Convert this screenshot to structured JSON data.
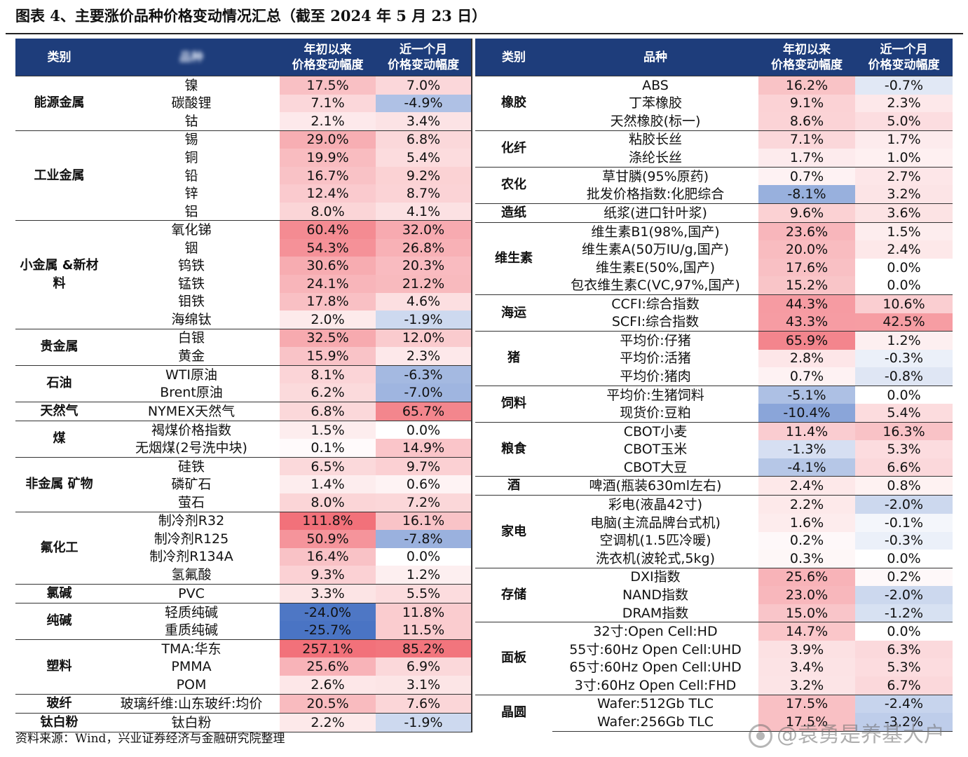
{
  "title": "图表 4、主要涨价品种价格变动情况汇总（截至 2024 年 5 月 23 日）",
  "source": "资料来源：Wind，兴业证券经济与金融研究院整理",
  "watermark": "@袁勇是养基大户",
  "headers": {
    "category": "类别",
    "variety": "品种",
    "ytd_line1": "年初以来",
    "ytd_line2": "价格变动幅度",
    "month_line1": "近一个月",
    "month_line2": "价格变动幅度"
  },
  "colors": {
    "header_bg": "#1e3d7b",
    "positive": "#f0616b",
    "negative": "#4a74c4"
  },
  "left_groups": [
    {
      "category": "能源金属",
      "rows": [
        {
          "name": "镍",
          "ytd": "17.5%",
          "month": "7.0%"
        },
        {
          "name": "碳酸锂",
          "ytd": "7.1%",
          "month": "-4.9%"
        },
        {
          "name": "钴",
          "ytd": "2.1%",
          "month": "3.4%"
        }
      ]
    },
    {
      "category": "工业金属",
      "rows": [
        {
          "name": "锡",
          "ytd": "29.0%",
          "month": "6.8%"
        },
        {
          "name": "铜",
          "ytd": "19.9%",
          "month": "5.4%"
        },
        {
          "name": "铅",
          "ytd": "16.7%",
          "month": "9.2%"
        },
        {
          "name": "锌",
          "ytd": "12.4%",
          "month": "8.7%"
        },
        {
          "name": "铝",
          "ytd": "8.0%",
          "month": "4.1%"
        }
      ]
    },
    {
      "category": "小金属 &新材料",
      "rows": [
        {
          "name": "氧化锑",
          "ytd": "60.4%",
          "month": "32.0%"
        },
        {
          "name": "铟",
          "ytd": "54.3%",
          "month": "26.8%"
        },
        {
          "name": "钨铁",
          "ytd": "30.6%",
          "month": "20.3%"
        },
        {
          "name": "锰铁",
          "ytd": "24.1%",
          "month": "21.2%"
        },
        {
          "name": "钼铁",
          "ytd": "17.8%",
          "month": "4.6%"
        },
        {
          "name": "海绵钛",
          "ytd": "2.0%",
          "month": "-1.9%"
        }
      ]
    },
    {
      "category": "贵金属",
      "rows": [
        {
          "name": "白银",
          "ytd": "32.5%",
          "month": "12.0%"
        },
        {
          "name": "黄金",
          "ytd": "15.9%",
          "month": "2.3%"
        }
      ]
    },
    {
      "category": "石油",
      "rows": [
        {
          "name": "WTI原油",
          "ytd": "8.1%",
          "month": "-6.3%"
        },
        {
          "name": "Brent原油",
          "ytd": "6.2%",
          "month": "-7.0%"
        }
      ]
    },
    {
      "category": "天然气",
      "rows": [
        {
          "name": "NYMEX天然气",
          "ytd": "6.8%",
          "month": "65.7%"
        }
      ]
    },
    {
      "category": "煤",
      "rows": [
        {
          "name": "褐煤价格指数",
          "ytd": "1.5%",
          "month": "0.0%"
        },
        {
          "name": "无烟煤(2号洗中块)",
          "ytd": "0.1%",
          "month": "14.9%"
        }
      ]
    },
    {
      "category": "非金属 矿物",
      "rows": [
        {
          "name": "硅铁",
          "ytd": "6.5%",
          "month": "9.7%"
        },
        {
          "name": "磷矿石",
          "ytd": "1.4%",
          "month": "0.6%"
        },
        {
          "name": "萤石",
          "ytd": "8.0%",
          "month": "7.2%"
        }
      ]
    },
    {
      "category": "氟化工",
      "rows": [
        {
          "name": "制冷剂R32",
          "ytd": "111.8%",
          "month": "16.1%"
        },
        {
          "name": "制冷剂R125",
          "ytd": "50.9%",
          "month": "-7.8%"
        },
        {
          "name": "制冷剂R134A",
          "ytd": "16.4%",
          "month": "0.0%"
        },
        {
          "name": "氢氟酸",
          "ytd": "9.3%",
          "month": "1.2%"
        }
      ]
    },
    {
      "category": "氯碱",
      "rows": [
        {
          "name": "PVC",
          "ytd": "3.3%",
          "month": "5.5%"
        }
      ]
    },
    {
      "category": "纯碱",
      "rows": [
        {
          "name": "轻质纯碱",
          "ytd": "-24.0%",
          "month": "11.8%"
        },
        {
          "name": "重质纯碱",
          "ytd": "-25.7%",
          "month": "11.5%"
        }
      ]
    },
    {
      "category": "塑料",
      "rows": [
        {
          "name": "TMA:华东",
          "ytd": "257.1%",
          "month": "85.2%"
        },
        {
          "name": "PMMA",
          "ytd": "25.6%",
          "month": "6.9%"
        },
        {
          "name": "POM",
          "ytd": "2.6%",
          "month": "3.1%"
        }
      ]
    },
    {
      "category": "玻纤",
      "rows": [
        {
          "name": "玻璃纤维:山东玻纤:均价",
          "ytd": "20.5%",
          "month": "7.6%"
        }
      ]
    },
    {
      "category": "钛白粉",
      "rows": [
        {
          "name": "钛白粉",
          "ytd": "2.2%",
          "month": "-1.9%"
        }
      ]
    }
  ],
  "right_groups": [
    {
      "category": "橡胶",
      "rows": [
        {
          "name": "ABS",
          "ytd": "16.2%",
          "month": "-0.7%"
        },
        {
          "name": "丁苯橡胶",
          "ytd": "9.1%",
          "month": "2.3%"
        },
        {
          "name": "天然橡胶(标一)",
          "ytd": "8.6%",
          "month": "5.0%"
        }
      ]
    },
    {
      "category": "化纤",
      "rows": [
        {
          "name": "粘胶长丝",
          "ytd": "7.1%",
          "month": "1.7%"
        },
        {
          "name": "涤纶长丝",
          "ytd": "1.7%",
          "month": "1.0%"
        }
      ]
    },
    {
      "category": "农化",
      "rows": [
        {
          "name": "草甘膦(95%原药)",
          "ytd": "0.7%",
          "month": "2.7%"
        },
        {
          "name": "批发价格指数:化肥综合",
          "ytd": "-8.1%",
          "month": "3.2%"
        }
      ]
    },
    {
      "category": "造纸",
      "rows": [
        {
          "name": "纸浆(进口针叶浆)",
          "ytd": "9.6%",
          "month": "3.6%"
        }
      ]
    },
    {
      "category": "维生素",
      "rows": [
        {
          "name": "维生素B1(98%,国产)",
          "ytd": "23.6%",
          "month": "1.5%"
        },
        {
          "name": "维生素A(50万IU/g,国产)",
          "ytd": "20.0%",
          "month": "2.4%"
        },
        {
          "name": "维生素E(50%,国产)",
          "ytd": "17.6%",
          "month": "0.0%"
        },
        {
          "name": "包衣维生素C(VC,97%,国产)",
          "ytd": "15.2%",
          "month": "0.0%"
        }
      ]
    },
    {
      "category": "海运",
      "rows": [
        {
          "name": "CCFI:综合指数",
          "ytd": "44.3%",
          "month": "10.6%"
        },
        {
          "name": "SCFI:综合指数",
          "ytd": "43.3%",
          "month": "42.5%"
        }
      ]
    },
    {
      "category": "猪",
      "rows": [
        {
          "name": "平均价:仔猪",
          "ytd": "65.9%",
          "month": "1.2%"
        },
        {
          "name": "平均价:活猪",
          "ytd": "2.8%",
          "month": "-0.3%"
        },
        {
          "name": "平均价:猪肉",
          "ytd": "0.7%",
          "month": "-0.8%"
        }
      ]
    },
    {
      "category": "饲料",
      "rows": [
        {
          "name": "平均价:生猪饲料",
          "ytd": "-5.1%",
          "month": "0.0%"
        },
        {
          "name": "现货价:豆粕",
          "ytd": "-10.4%",
          "month": "5.4%"
        }
      ]
    },
    {
      "category": "粮食",
      "rows": [
        {
          "name": "CBOT小麦",
          "ytd": "11.4%",
          "month": "16.3%"
        },
        {
          "name": "CBOT玉米",
          "ytd": "-1.3%",
          "month": "5.3%"
        },
        {
          "name": "CBOT大豆",
          "ytd": "-4.1%",
          "month": "6.6%"
        }
      ]
    },
    {
      "category": "酒",
      "rows": [
        {
          "name": "啤酒(瓶装630ml左右)",
          "ytd": "2.4%",
          "month": "0.8%"
        }
      ]
    },
    {
      "category": "家电",
      "rows": [
        {
          "name": "彩电(液晶42寸)",
          "ytd": "2.2%",
          "month": "-2.0%"
        },
        {
          "name": "电脑(主流品牌台式机)",
          "ytd": "1.6%",
          "month": "-0.1%"
        },
        {
          "name": "空调机(1.5匹冷暖)",
          "ytd": "0.2%",
          "month": "-0.3%"
        },
        {
          "name": "洗衣机(波轮式,5kg)",
          "ytd": "0.3%",
          "month": "0.0%"
        }
      ]
    },
    {
      "category": "存储",
      "rows": [
        {
          "name": "DXI指数",
          "ytd": "25.6%",
          "month": "0.2%"
        },
        {
          "name": "NAND指数",
          "ytd": "23.0%",
          "month": "-2.0%"
        },
        {
          "name": "DRAM指数",
          "ytd": "15.0%",
          "month": "-1.2%"
        }
      ]
    },
    {
      "category": "面板",
      "rows": [
        {
          "name": "32寸:Open Cell:HD",
          "ytd": "14.7%",
          "month": "0.0%"
        },
        {
          "name": "55寸:60Hz Open Cell:UHD",
          "ytd": "3.9%",
          "month": "6.3%"
        },
        {
          "name": "65寸:60Hz Open Cell:UHD",
          "ytd": "3.4%",
          "month": "5.3%"
        },
        {
          "name": "3寸:60Hz Open Cell:FHD",
          "ytd": "3.2%",
          "month": "6.7%"
        }
      ]
    },
    {
      "category": "晶圆",
      "rows": [
        {
          "name": "Wafer:512Gb TLC",
          "ytd": "17.5%",
          "month": "-2.4%"
        },
        {
          "name": "Wafer:256Gb TLC",
          "ytd": "17.5%",
          "month": "-3.2%"
        }
      ]
    }
  ]
}
